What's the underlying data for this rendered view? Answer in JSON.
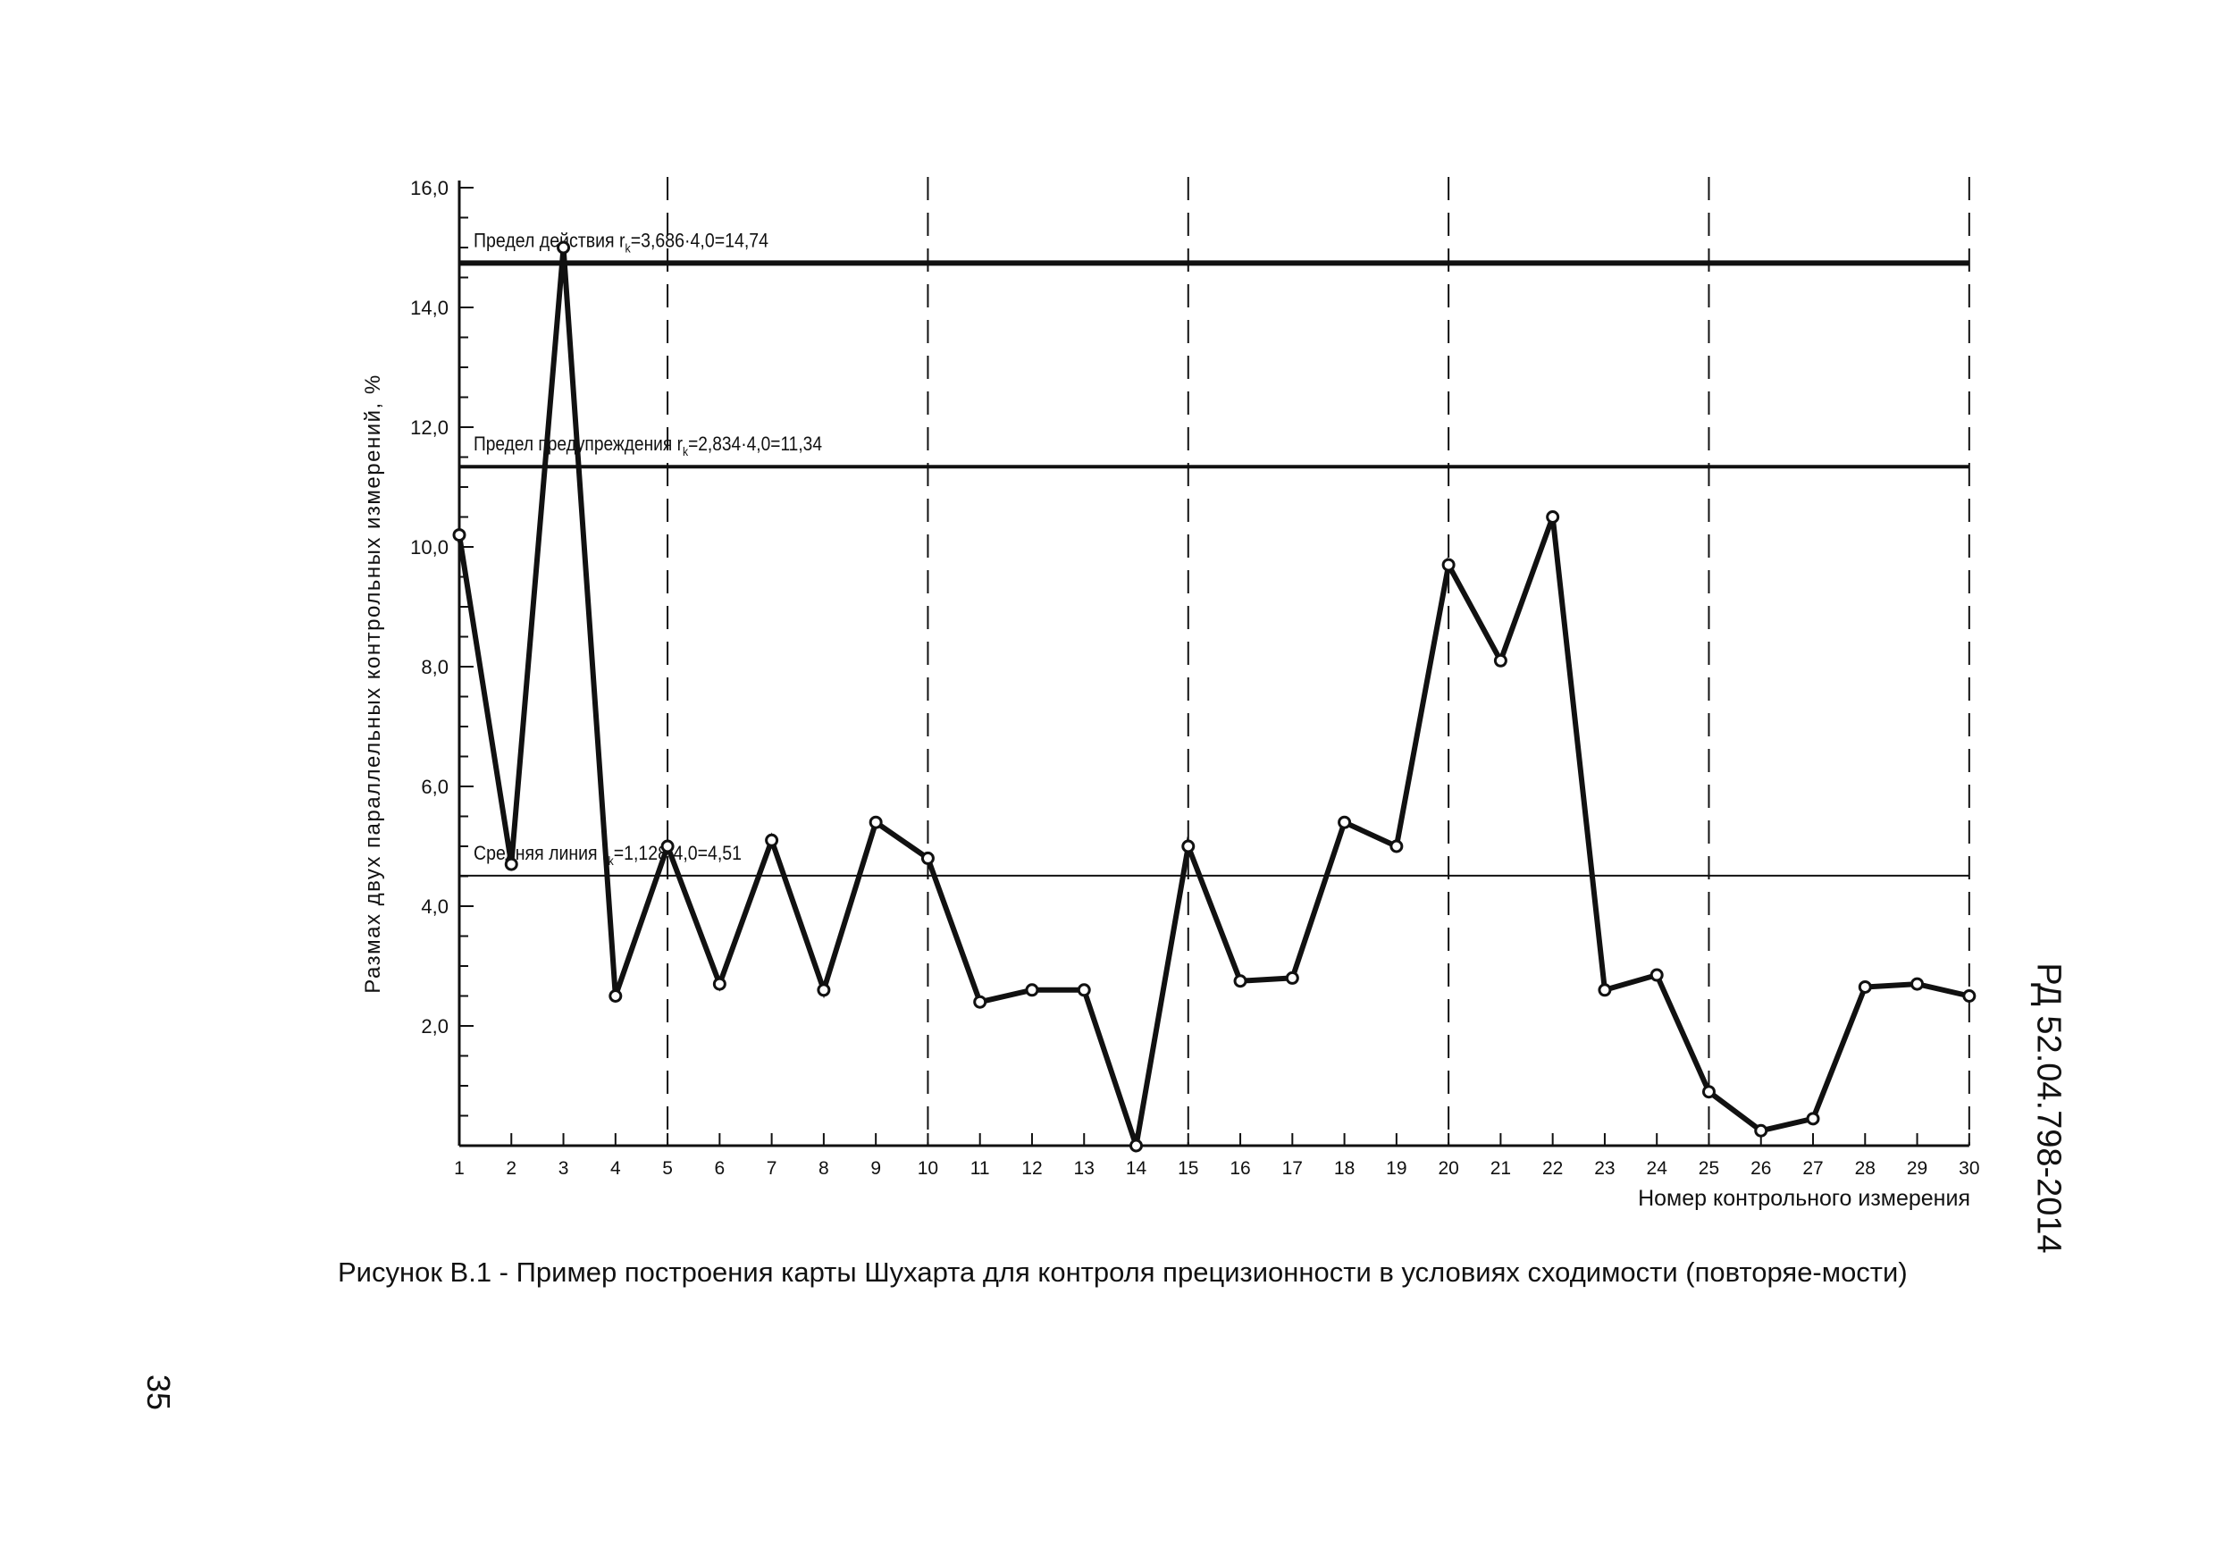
{
  "chart_data": {
    "type": "line",
    "xlabel": "Номер контрольного измерения",
    "ylabel": "Размах двух параллельных контрольных измерений, %",
    "ylim": [
      0,
      16
    ],
    "y_ticks": [
      "2,0",
      "4,0",
      "6,0",
      "8,0",
      "10,0",
      "12,0",
      "14,0",
      "16,0"
    ],
    "y_tick_values": [
      2,
      4,
      6,
      8,
      10,
      12,
      14,
      16
    ],
    "x": [
      1,
      2,
      3,
      4,
      5,
      6,
      7,
      8,
      9,
      10,
      11,
      12,
      13,
      14,
      15,
      16,
      17,
      18,
      19,
      20,
      21,
      22,
      23,
      24,
      25,
      26,
      27,
      28,
      29,
      30
    ],
    "x_tick_labels": [
      "1",
      "2",
      "3",
      "4",
      "5",
      "6",
      "7",
      "8",
      "9",
      "10",
      "11",
      "12",
      "13",
      "14",
      "15",
      "16",
      "17",
      "18",
      "19",
      "20",
      "21",
      "22",
      "23",
      "24",
      "25",
      "26",
      "27",
      "28",
      "29",
      "30"
    ],
    "series": [
      {
        "values": [
          10.2,
          4.7,
          15.0,
          2.5,
          5.0,
          2.7,
          5.1,
          2.6,
          5.4,
          4.8,
          2.4,
          2.6,
          2.6,
          0.0,
          5.0,
          2.75,
          2.8,
          5.4,
          5.0,
          9.7,
          8.1,
          10.5,
          2.6,
          2.85,
          0.9,
          0.25,
          0.45,
          2.65,
          2.7,
          2.5
        ]
      }
    ],
    "reference_lines": [
      {
        "label": "Предел действия r",
        "sub": "k",
        "formula": "=3,686·4,0=14,74",
        "value": 14.74,
        "style": "thick"
      },
      {
        "label": "Предел предупреждения r",
        "sub": "k",
        "formula": "=2,834·4,0=11,34",
        "value": 11.34,
        "style": "medium"
      },
      {
        "label": "Средняя линия r",
        "sub": "k",
        "formula": "=1,128·4,0=4,51",
        "value": 4.51,
        "style": "thin"
      }
    ],
    "vertical_dashed_at": [
      5,
      10,
      15,
      20,
      25,
      30
    ],
    "grid": false
  },
  "caption": "Рисунок В.1 - Пример построения карты Шухарта для контроля прецизионности в условиях сходимости (повторяе-мости)",
  "doc_id": "РД 52.04.798-2014",
  "page_number": "35"
}
